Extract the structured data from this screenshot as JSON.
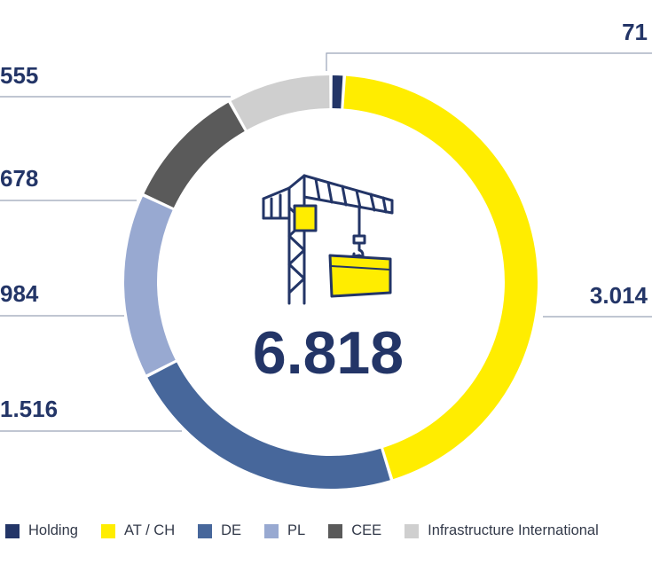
{
  "chart_data": {
    "type": "pie",
    "title": "",
    "total": "6.818",
    "slices": [
      {
        "name": "Holding",
        "value": 71,
        "label": "71",
        "color": "#233567"
      },
      {
        "name": "AT / CH",
        "value": 3014,
        "label": "3.014",
        "color": "#ffed00"
      },
      {
        "name": "DE",
        "value": 1516,
        "label": "1.516",
        "color": "#47679b"
      },
      {
        "name": "PL",
        "value": 984,
        "label": "984",
        "color": "#98a9d1"
      },
      {
        "name": "CEE",
        "value": 678,
        "label": "678",
        "color": "#5a5a5a"
      },
      {
        "name": "Infrastructure International",
        "value": 555,
        "label": "555",
        "color": "#cfcfcf"
      }
    ],
    "legend_position": "bottom",
    "center_icon": "crane-icon"
  }
}
